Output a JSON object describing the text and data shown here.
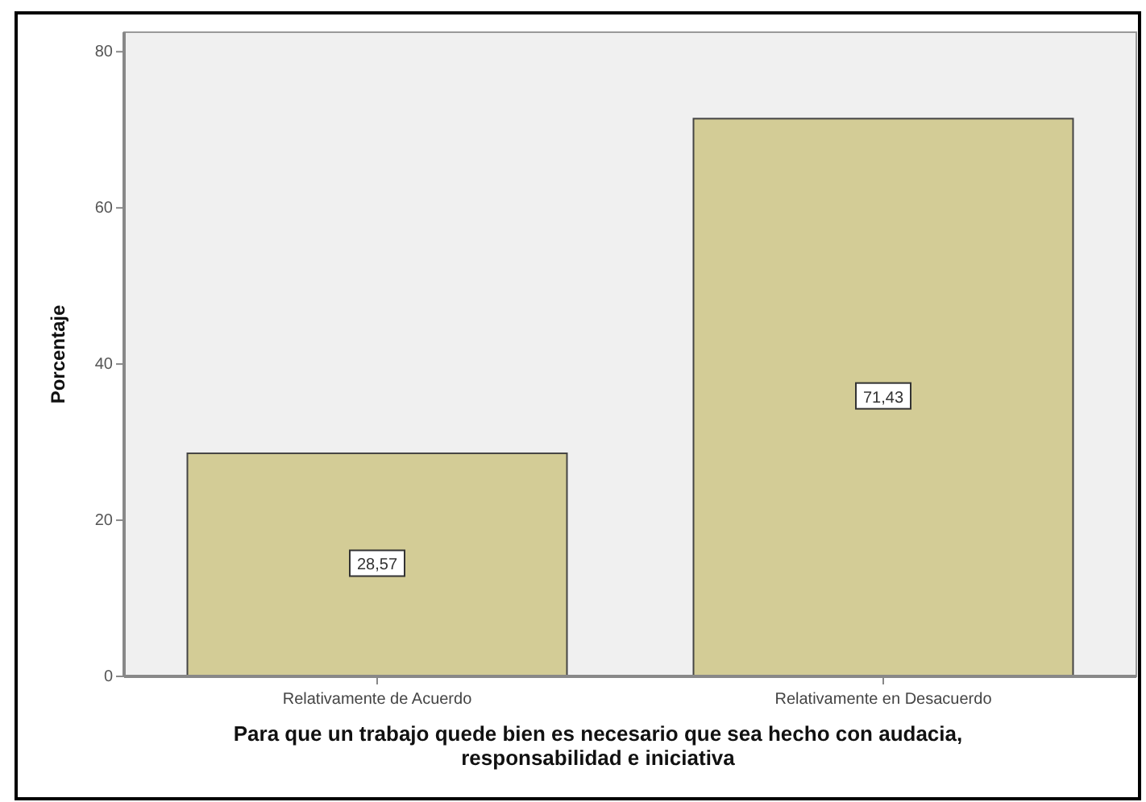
{
  "chart_data": {
    "type": "bar",
    "xlabel": "Para que un trabajo quede bien es necesario que sea hecho con audacia,\nresponsabilidad e iniciativa",
    "ylabel": "Porcentaje",
    "categories": [
      "Relativamente de Acuerdo",
      "Relativamente en Desacuerdo"
    ],
    "values": [
      28.57,
      71.43
    ],
    "value_labels": [
      "28,57",
      "71,43"
    ],
    "color": "#d3cc96",
    "ylim": [
      0,
      82.5
    ],
    "yticks": [
      0,
      20,
      40,
      60,
      80
    ],
    "grid": false
  }
}
